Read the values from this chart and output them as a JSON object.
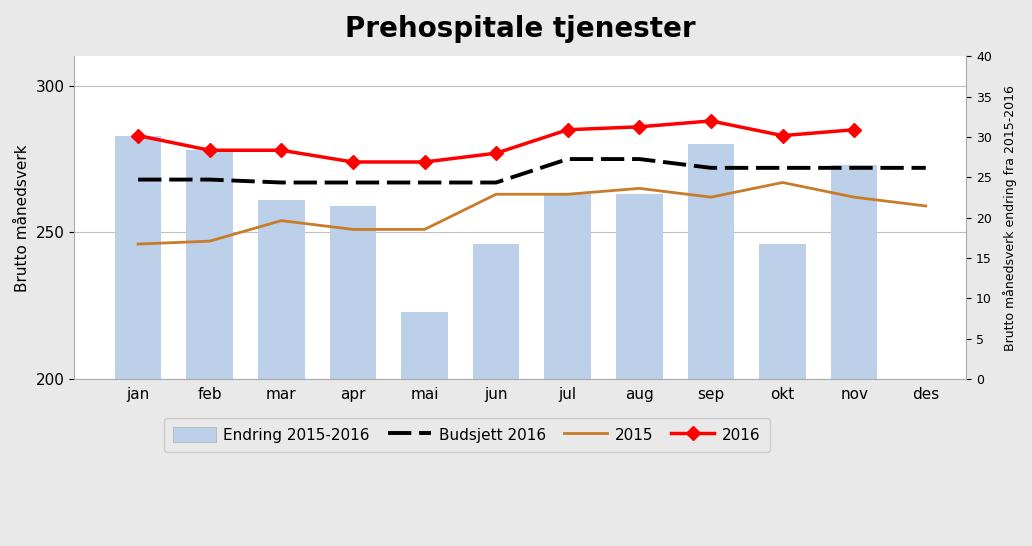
{
  "title": "Prehospitale tjenester",
  "months": [
    "jan",
    "feb",
    "mar",
    "apr",
    "mai",
    "jun",
    "jul",
    "aug",
    "sep",
    "okt",
    "nov",
    "des"
  ],
  "bar_values": [
    283,
    278,
    261,
    259,
    223,
    246,
    263,
    263,
    280,
    246,
    273,
    null
  ],
  "budget_2016": [
    268,
    268,
    267,
    267,
    267,
    267,
    275,
    275,
    272,
    272,
    272,
    272
  ],
  "line_2015": [
    246,
    247,
    254,
    251,
    251,
    263,
    263,
    265,
    262,
    267,
    262,
    259
  ],
  "line_2016": [
    283,
    278,
    278,
    274,
    274,
    277,
    285,
    286,
    288,
    283,
    285,
    null
  ],
  "bar_color": "#bdd0e9",
  "budget_color": "#000000",
  "line2015_color": "#c87c2a",
  "line2016_color": "#ff0000",
  "ylabel_left": "Brutto månedsverk",
  "ylabel_right": "Brutto månedsverk endring fra 2015-2016",
  "ylim_left": [
    200,
    310
  ],
  "ylim_right": [
    0,
    40
  ],
  "yticks_left": [
    200,
    250,
    300
  ],
  "yticks_right": [
    0,
    5,
    10,
    15,
    20,
    25,
    30,
    35,
    40
  ],
  "legend_labels": [
    "Endring 2015-2016",
    "Budsjett 2016",
    "2015",
    "2016"
  ],
  "fig_facecolor": "#e9e9e9",
  "plot_facecolor": "#ffffff",
  "title_fontsize": 20,
  "axis_fontsize": 11,
  "legend_fontsize": 11
}
